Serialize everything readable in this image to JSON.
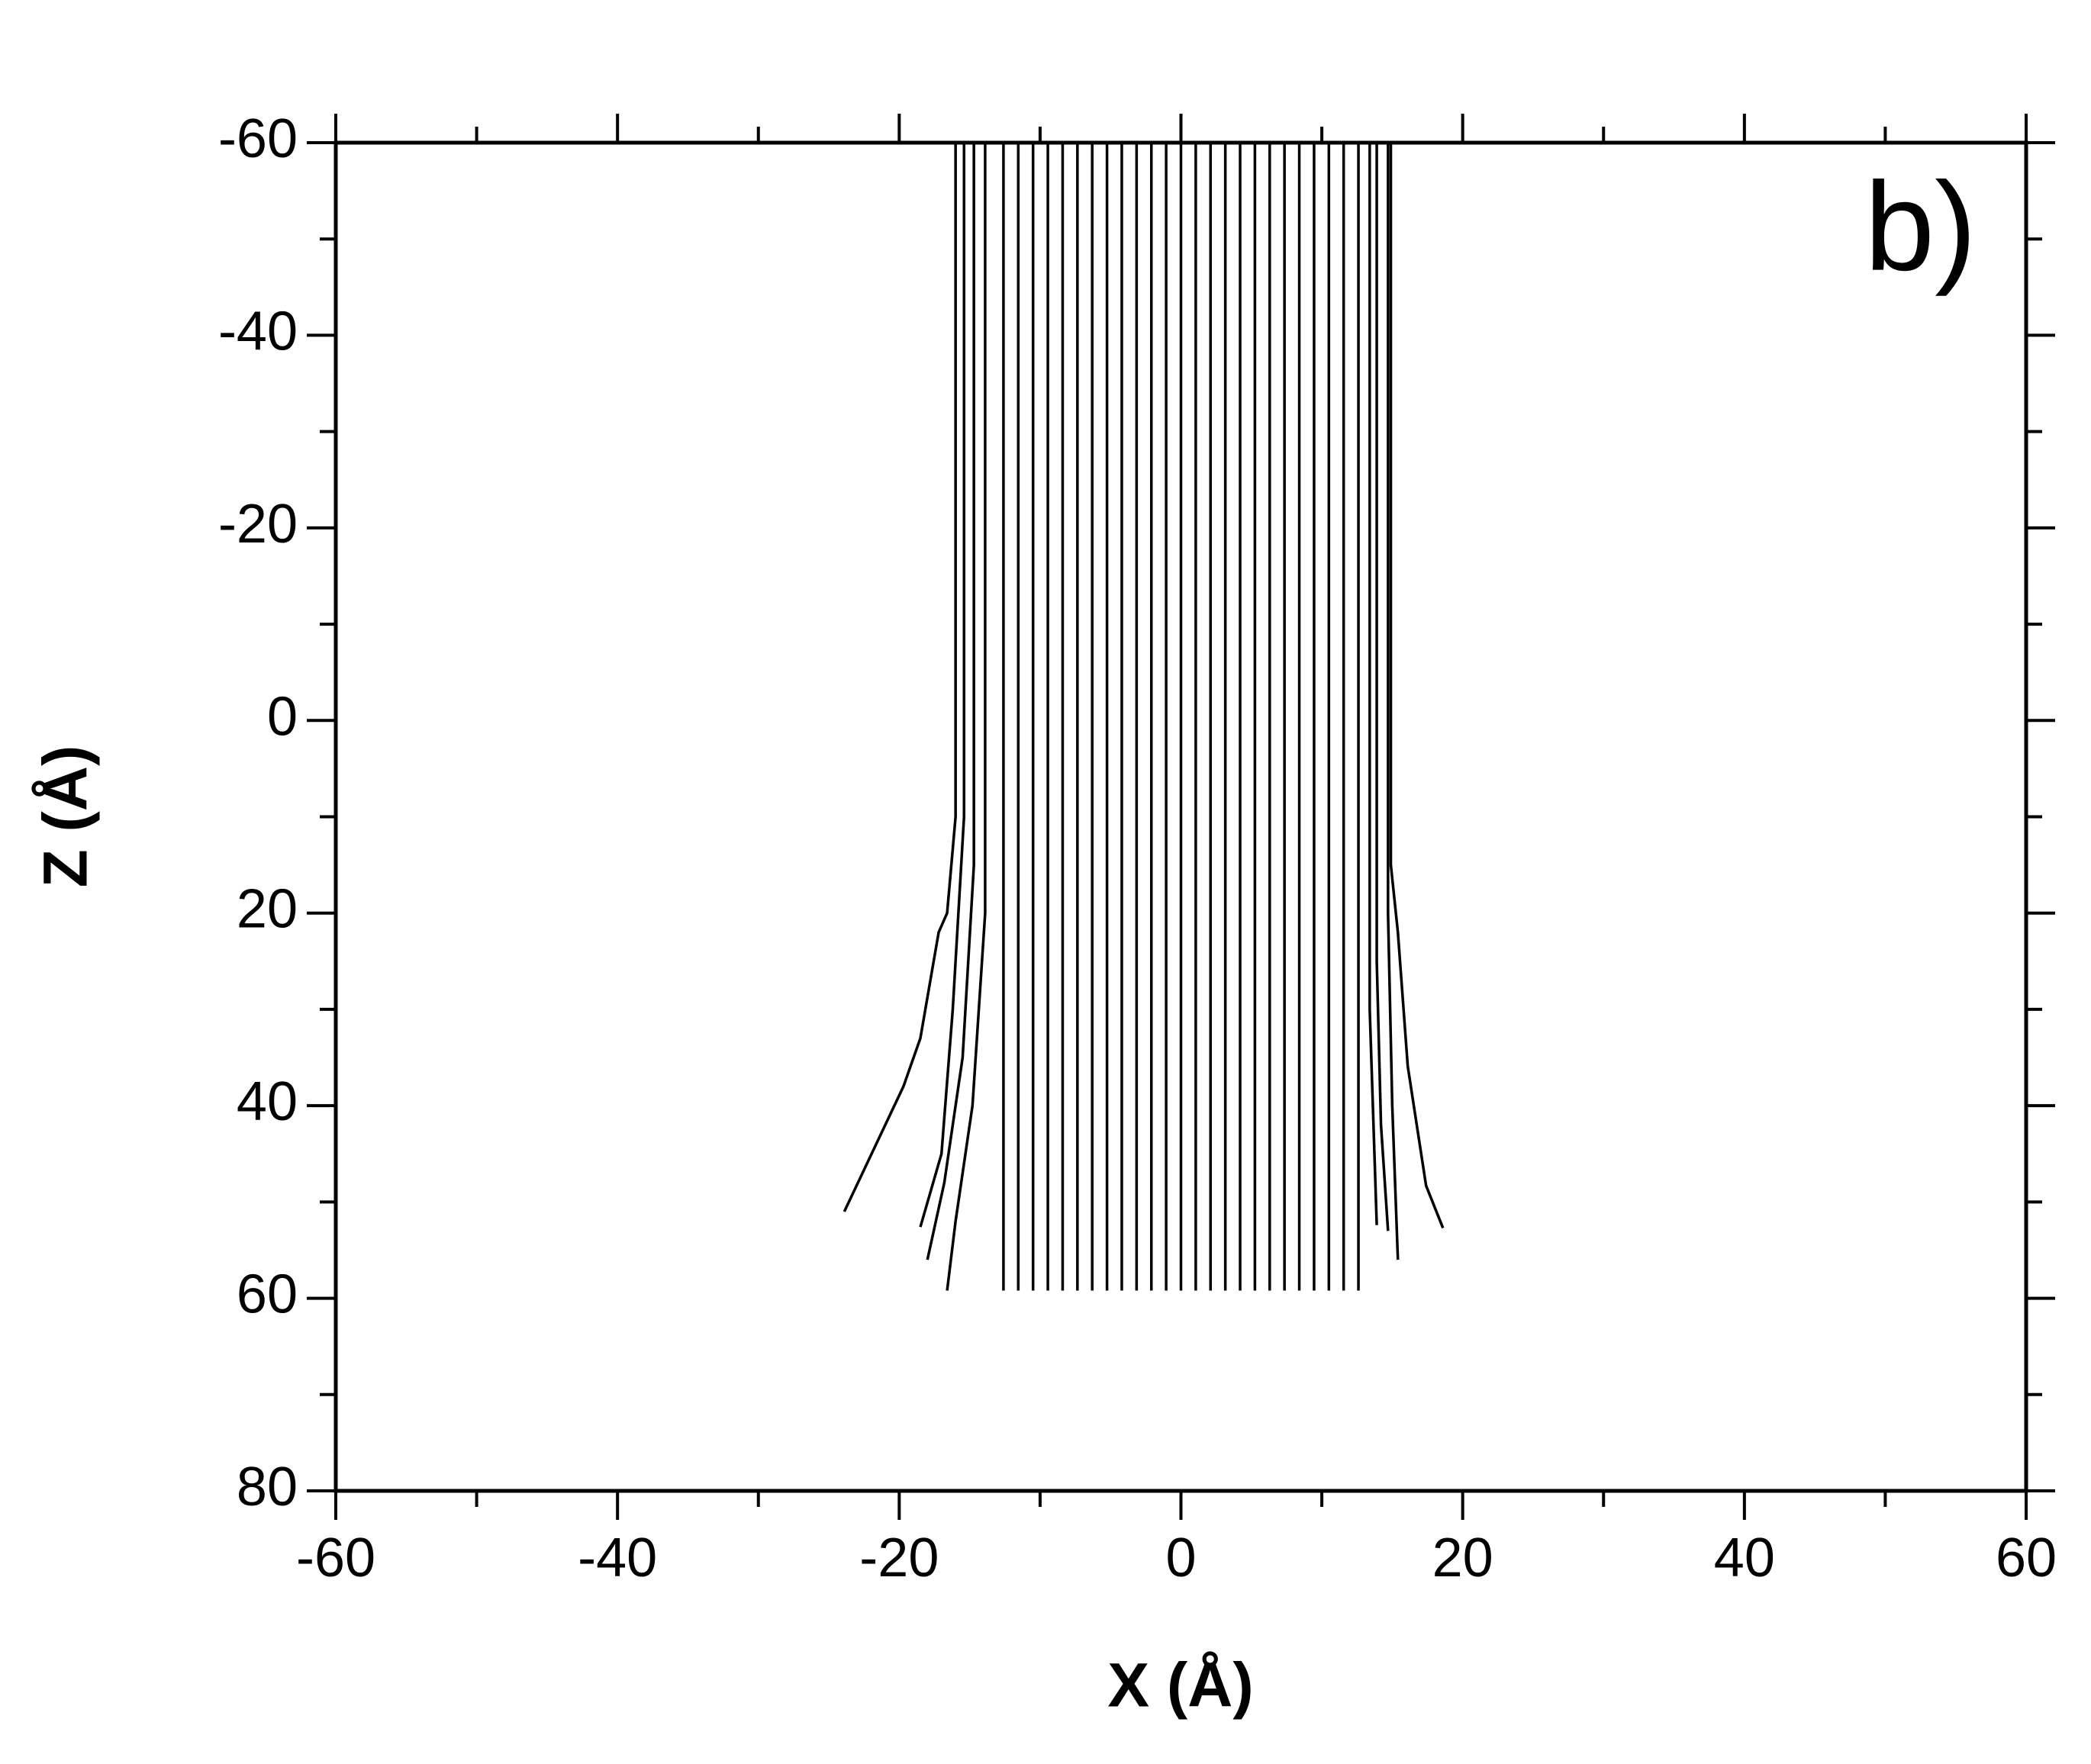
{
  "chart_data": {
    "type": "line",
    "annotation": "b)",
    "xlabel": "X (Å)",
    "ylabel": "Z (Å)",
    "xlim": [
      -60,
      60
    ],
    "xticks": [
      -60,
      -40,
      -20,
      0,
      20,
      40,
      60
    ],
    "ylim": [
      -60,
      80
    ],
    "yticks": [
      -60,
      -40,
      -20,
      0,
      20,
      40,
      60,
      80
    ],
    "y_inverted": true,
    "minor_ticks": true,
    "mirror_ticks": true,
    "color": "#000000",
    "series": [
      {
        "x": [
          -16,
          -16,
          -16.6,
          -17.2,
          -18.5,
          -19.7,
          -23.9
        ],
        "values": [
          -60,
          10,
          20,
          22,
          33,
          38,
          51
        ]
      },
      {
        "x": [
          -15.4,
          -15.4,
          -16.2,
          -17,
          -18.5
        ],
        "values": [
          -60,
          10,
          30,
          45,
          52.6
        ]
      },
      {
        "x": [
          -14.7,
          -14.7,
          -15.5,
          -16.8,
          -18
        ],
        "values": [
          -60,
          15,
          35,
          48,
          56
        ]
      },
      {
        "x": [
          -13.9,
          -13.9,
          -14.8,
          -16,
          -16.6
        ],
        "values": [
          -60,
          20,
          40,
          52,
          59.2
        ]
      },
      {
        "x": [
          -12.6,
          -12.6
        ],
        "values": [
          -60,
          59.2
        ]
      },
      {
        "x": [
          -11.55,
          -11.55
        ],
        "values": [
          -60,
          59.2
        ]
      },
      {
        "x": [
          -10.5,
          -10.5
        ],
        "values": [
          -60,
          59.2
        ]
      },
      {
        "x": [
          -9.45,
          -9.45
        ],
        "values": [
          -60,
          59.2
        ]
      },
      {
        "x": [
          -8.4,
          -8.4
        ],
        "values": [
          -60,
          59.2
        ]
      },
      {
        "x": [
          -7.35,
          -7.35
        ],
        "values": [
          -60,
          59.2
        ]
      },
      {
        "x": [
          -6.3,
          -6.3
        ],
        "values": [
          -60,
          59.2
        ]
      },
      {
        "x": [
          -5.25,
          -5.25
        ],
        "values": [
          -60,
          59.2
        ]
      },
      {
        "x": [
          -4.2,
          -4.2
        ],
        "values": [
          -60,
          59.2
        ]
      },
      {
        "x": [
          -3.15,
          -3.15
        ],
        "values": [
          -60,
          59.2
        ]
      },
      {
        "x": [
          -2.1,
          -2.1
        ],
        "values": [
          -60,
          59.2
        ]
      },
      {
        "x": [
          -1.05,
          -1.05
        ],
        "values": [
          -60,
          59.2
        ]
      },
      {
        "x": [
          0,
          0
        ],
        "values": [
          -60,
          59.2
        ]
      },
      {
        "x": [
          1.05,
          1.05
        ],
        "values": [
          -60,
          59.2
        ]
      },
      {
        "x": [
          2.1,
          2.1
        ],
        "values": [
          -60,
          59.2
        ]
      },
      {
        "x": [
          3.15,
          3.15
        ],
        "values": [
          -60,
          59.2
        ]
      },
      {
        "x": [
          4.2,
          4.2
        ],
        "values": [
          -60,
          59.2
        ]
      },
      {
        "x": [
          5.25,
          5.25
        ],
        "values": [
          -60,
          59.2
        ]
      },
      {
        "x": [
          6.3,
          6.3
        ],
        "values": [
          -60,
          59.2
        ]
      },
      {
        "x": [
          7.35,
          7.35
        ],
        "values": [
          -60,
          59.2
        ]
      },
      {
        "x": [
          8.4,
          8.4
        ],
        "values": [
          -60,
          59.2
        ]
      },
      {
        "x": [
          9.45,
          9.45
        ],
        "values": [
          -60,
          59.2
        ]
      },
      {
        "x": [
          10.5,
          10.5
        ],
        "values": [
          -60,
          59.2
        ]
      },
      {
        "x": [
          11.55,
          11.55
        ],
        "values": [
          -60,
          59.2
        ]
      },
      {
        "x": [
          12.6,
          12.6
        ],
        "values": [
          -60,
          59.2
        ]
      },
      {
        "x": [
          13.4,
          13.4,
          13.9
        ],
        "values": [
          -60,
          30,
          52.4
        ]
      },
      {
        "x": [
          13.9,
          13.9,
          14.2,
          14.7
        ],
        "values": [
          -60,
          25,
          42,
          53
        ]
      },
      {
        "x": [
          14.7,
          14.7,
          15,
          15.4
        ],
        "values": [
          -60,
          20,
          40,
          56
        ]
      },
      {
        "x": [
          14.9,
          14.9,
          15.4,
          16.1,
          17.4,
          18.6
        ],
        "values": [
          -60,
          15,
          22,
          35.9,
          48.3,
          52.7
        ]
      }
    ]
  }
}
